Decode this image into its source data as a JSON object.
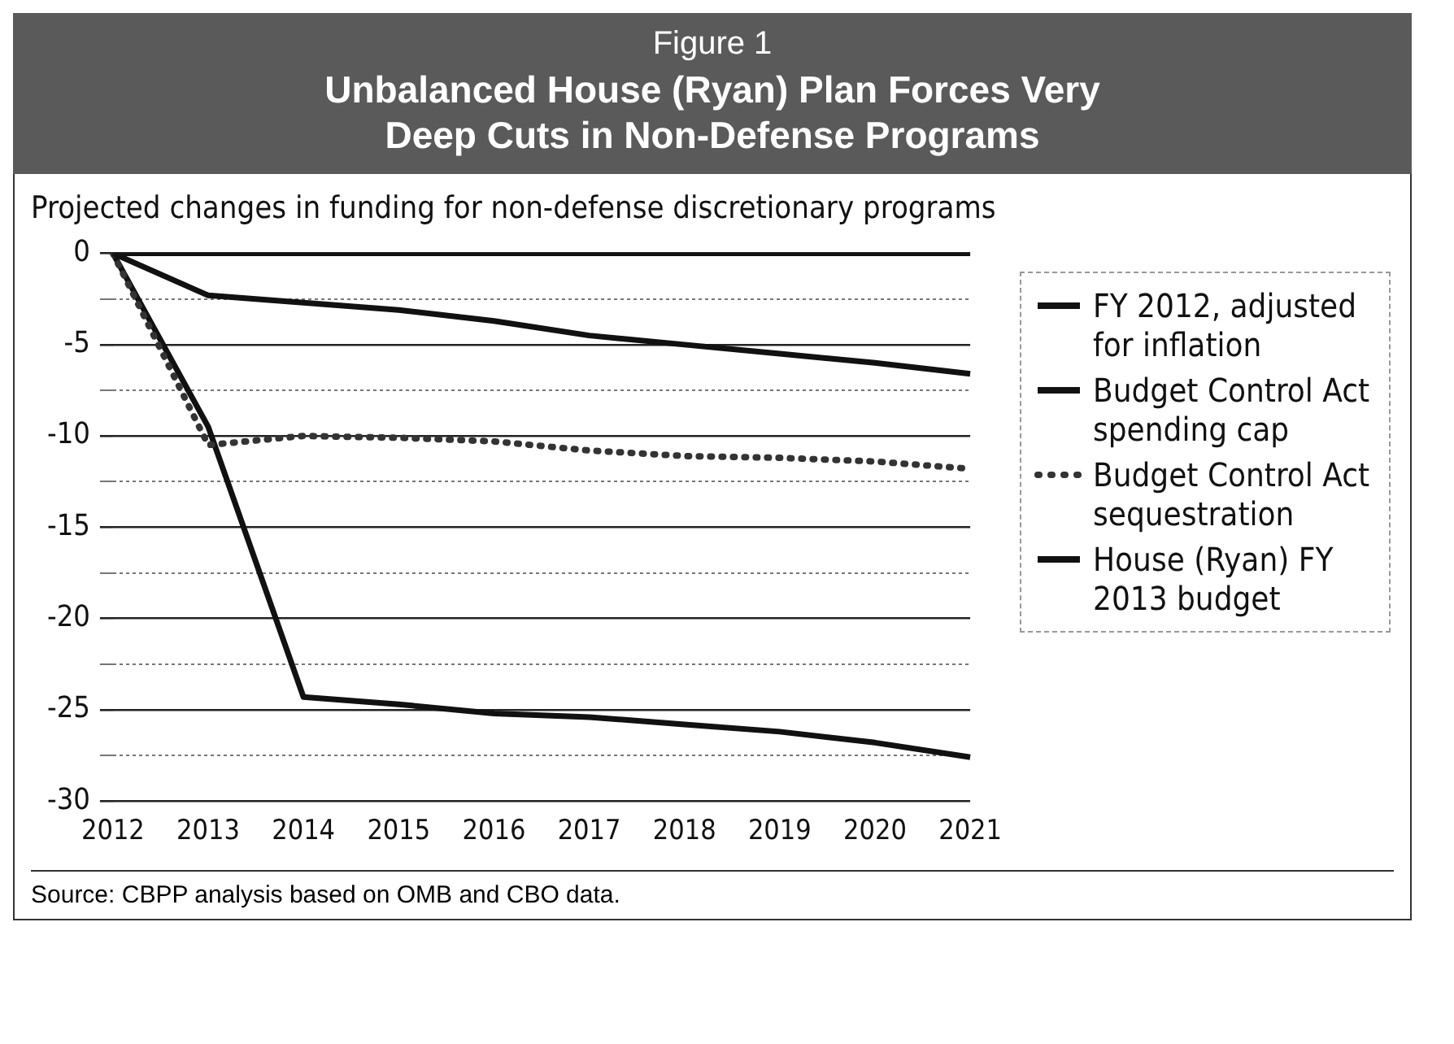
{
  "chart_data": {
    "type": "line",
    "title": "Figure 1",
    "subtitle": "Unbalanced House (Ryan) Plan Forces Very Deep Cuts in Non-Defense Programs",
    "ylabel": "Projected changes in funding for non-defense discretionary programs",
    "categories": [
      "2012",
      "2013",
      "2014",
      "2015",
      "2016",
      "2017",
      "2018",
      "2019",
      "2020",
      "2021"
    ],
    "series": [
      {
        "name": "FY 2012, adjusted for inflation",
        "color": "#111111",
        "values": [
          0,
          0,
          0,
          0,
          0,
          0,
          0,
          0,
          0,
          0
        ]
      },
      {
        "name": "Budget Control Act spending cap",
        "color": "#111111",
        "values": [
          0,
          -2.3,
          -2.7,
          -3.1,
          -3.7,
          -4.5,
          -5.0,
          -5.5,
          -6.0,
          -6.6
        ]
      },
      {
        "name": "Budget Control Act sequestration",
        "color": "#333333",
        "line_style": "dotted",
        "values": [
          0,
          -10.5,
          -10.0,
          -10.1,
          -10.3,
          -10.8,
          -11.1,
          -11.2,
          -11.4,
          -11.8
        ]
      },
      {
        "name": "House (Ryan) FY 2013 budget",
        "color": "#111111",
        "values": [
          0,
          -9.5,
          -24.3,
          -24.7,
          -25.2,
          -25.4,
          -25.8,
          -26.2,
          -26.8,
          -27.6
        ]
      }
    ],
    "ylim": [
      -30,
      0
    ],
    "yticks": [
      0,
      {
        "value": -2.5,
        "label": null
      },
      -5,
      {
        "value": -7.5,
        "label": null
      },
      -10,
      {
        "value": -12.5,
        "label": null
      },
      -15,
      {
        "value": -17.5,
        "label": null
      },
      -20,
      {
        "value": -22.5,
        "label": null
      },
      -25,
      {
        "value": -27.5,
        "label": null
      },
      -30
    ],
    "grid": "y",
    "legend": "right",
    "marker": "none",
    "line_style": "solid",
    "annotations": [
      "Source: CBPP analysis based on OMB and CBO data."
    ]
  }
}
